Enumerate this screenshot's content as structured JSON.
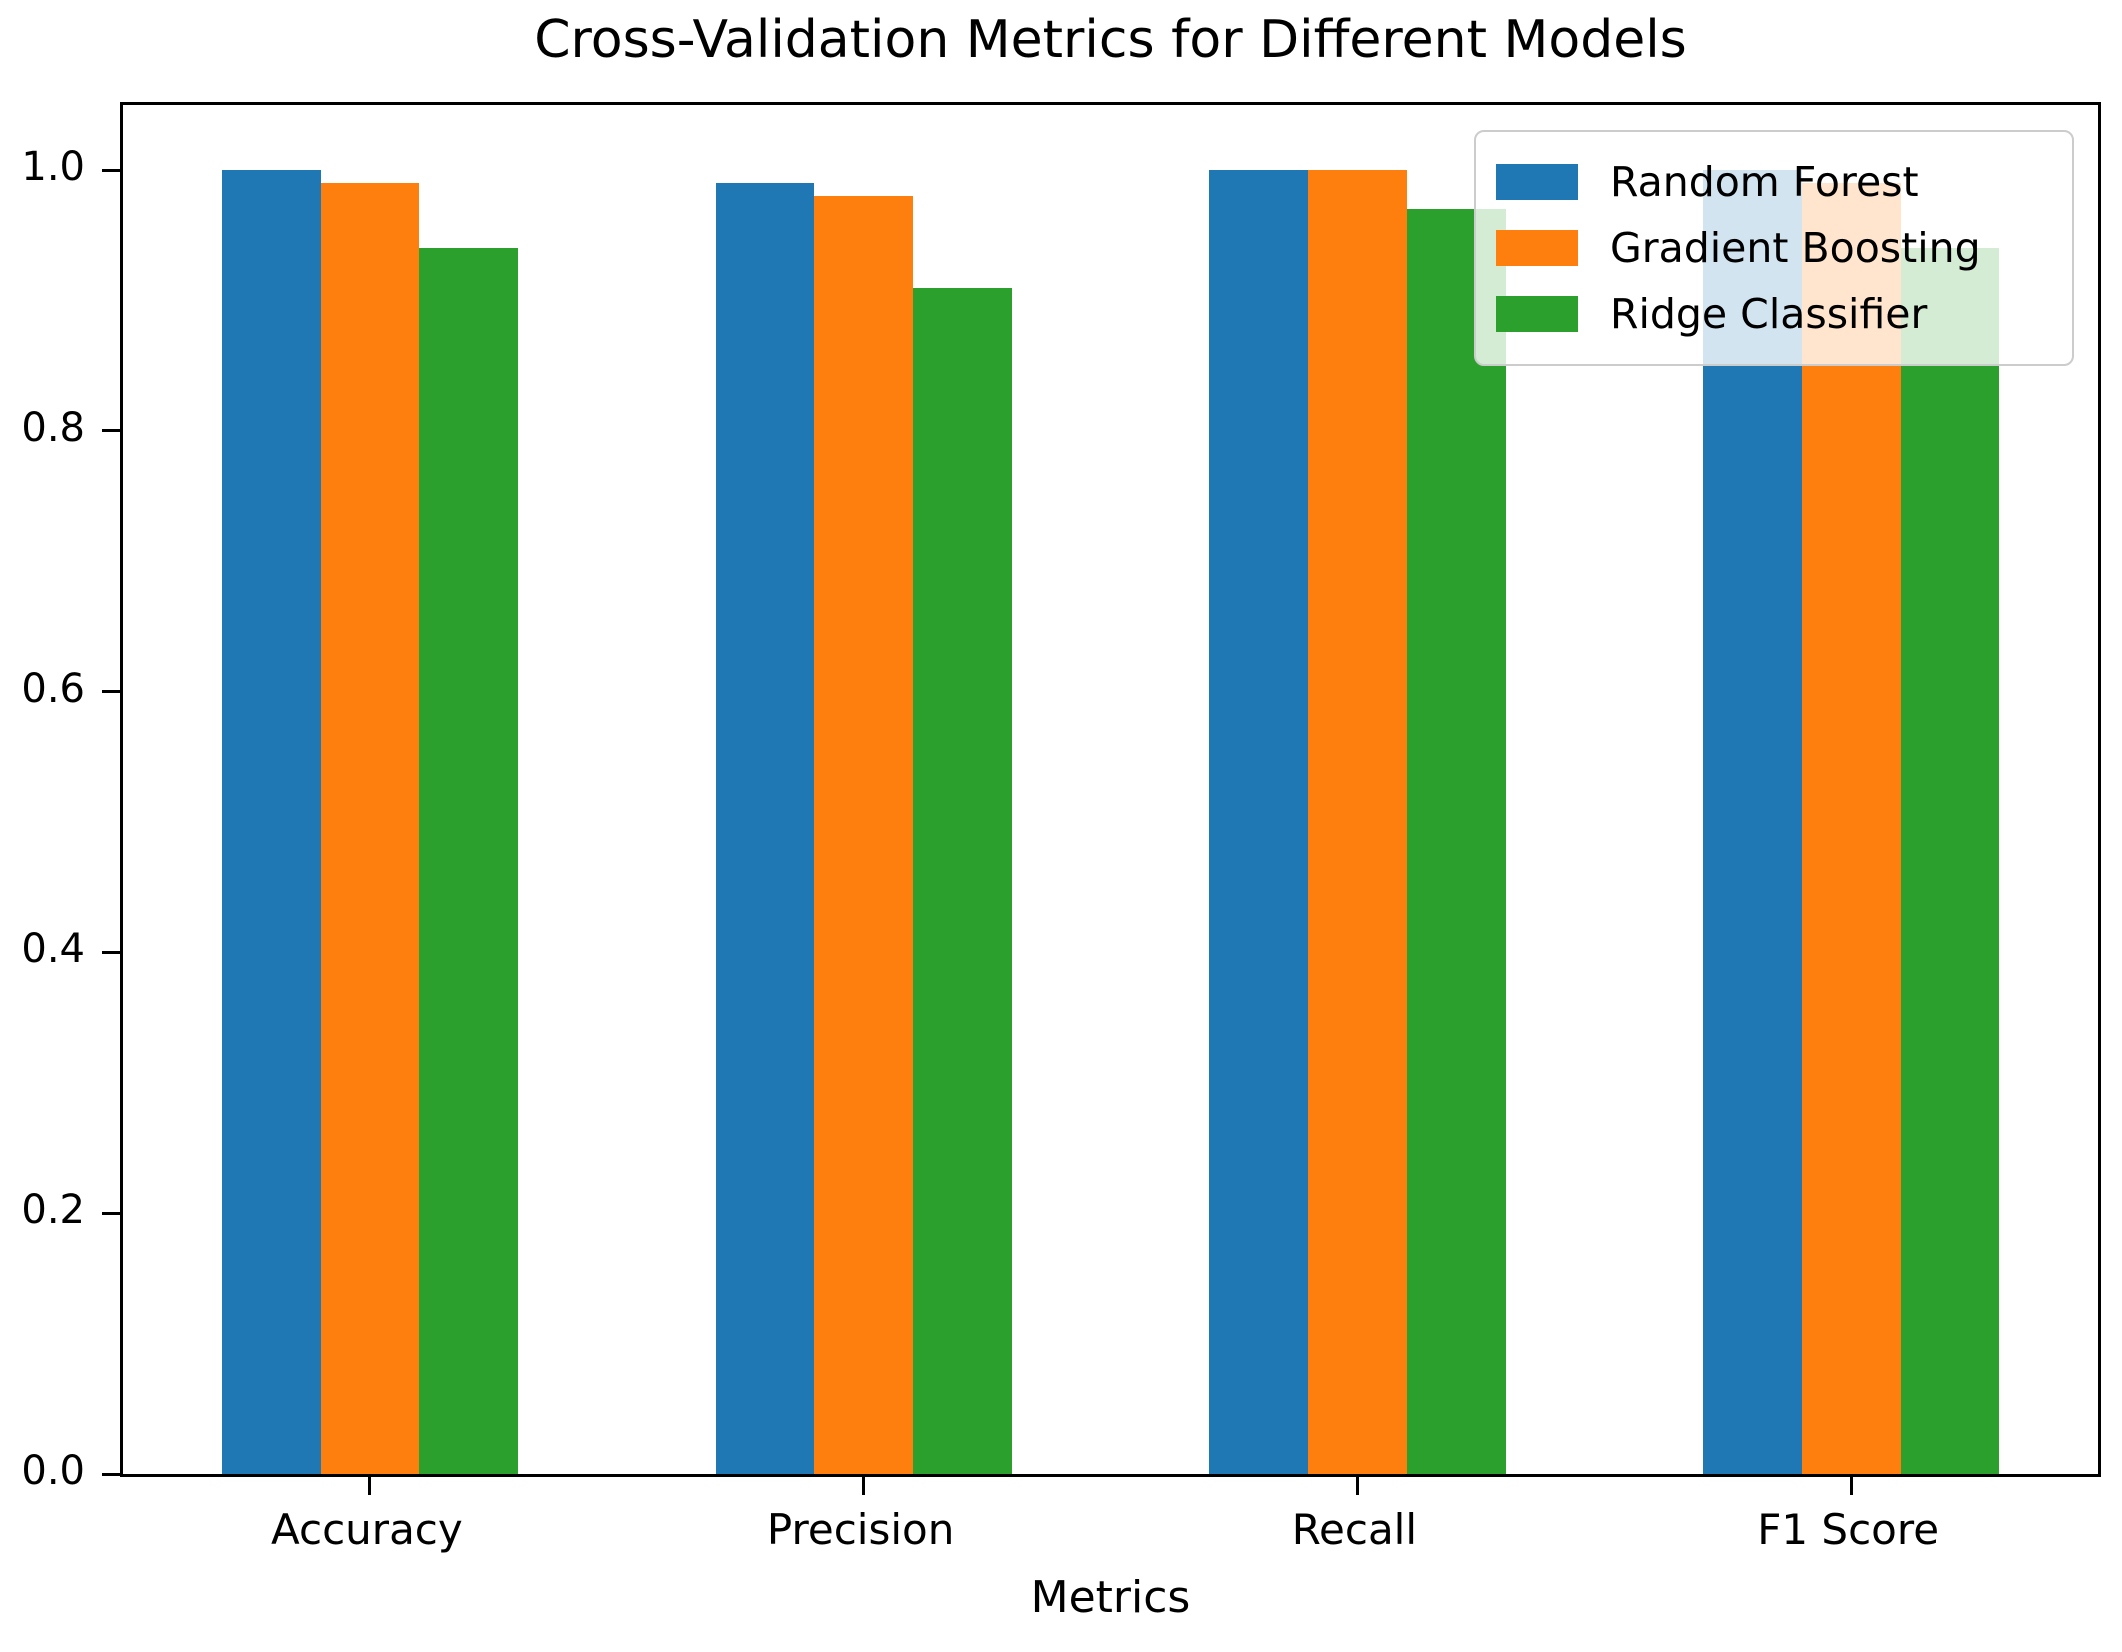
{
  "chart_data": {
    "type": "bar",
    "title": "Cross-Validation Metrics for Different Models",
    "xlabel": "Metrics",
    "ylabel": "",
    "categories": [
      "Accuracy",
      "Precision",
      "Recall",
      "F1 Score"
    ],
    "series": [
      {
        "name": "Random Forest",
        "color": "#1f77b4",
        "values": [
          1.0,
          0.99,
          1.0,
          1.0
        ]
      },
      {
        "name": "Gradient Boosting",
        "color": "#ff7f0e",
        "values": [
          0.99,
          0.98,
          1.0,
          0.99
        ]
      },
      {
        "name": "Ridge Classifier",
        "color": "#2ca02c",
        "values": [
          0.94,
          0.91,
          0.97,
          0.94
        ]
      }
    ],
    "ylim": [
      0,
      1.05
    ],
    "yticks": [
      0.0,
      0.2,
      0.4,
      0.6,
      0.8,
      1.0
    ],
    "ytick_labels": [
      "0.0",
      "0.2",
      "0.4",
      "0.6",
      "0.8",
      "1.0"
    ],
    "bar_width_fraction": 0.2,
    "grid": false,
    "legend_position": "upper right",
    "legend_framealpha": 0.8,
    "background_color": "#ffffff",
    "text_color": "#000000"
  }
}
